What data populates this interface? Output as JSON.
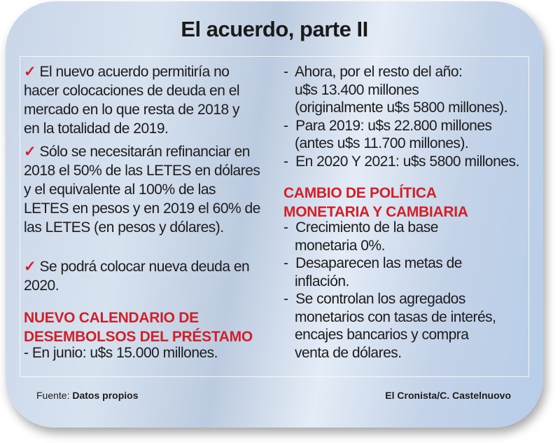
{
  "title": "El acuerdo, parte II",
  "left": {
    "p1": [
      "El nuevo acuerdo permitiría no",
      "hacer colocaciones de deuda en el",
      "mercado en lo que resta de 2018 y",
      "en la totalidad de 2019."
    ],
    "p2": [
      "Sólo se necesitarán refinanciar en",
      "2018 el 50% de las LETES en dólares",
      "y el equivalente al 100% de las",
      "LETES en pesos y en 2019 el 60% de",
      "las LETES (en pesos y dólares)."
    ],
    "p3": [
      "Se podrá colocar nueva deuda en",
      "2020."
    ],
    "heading": [
      "NUEVO CALENDARIO DE",
      "DESEMBOLSOS DEL PRÉSTAMO"
    ],
    "list": [
      "-  En junio: u$s 15.000 millones."
    ]
  },
  "right": {
    "list1": [
      "-  Ahora, por el resto del año:",
      "   u$s 13.400 millones",
      "   (originalmente u$s 5800 millones).",
      "-  Para 2019: u$s 22.800 millones",
      "   (antes u$s 11.700 millones).",
      "-  En 2020 Y 2021: u$s 5800 millones."
    ],
    "heading": [
      "CAMBIO DE POLÍTICA",
      "MONETARIA Y CAMBIARIA"
    ],
    "list2": [
      "-  Crecimiento de la base",
      "   monetaria 0%.",
      "-  Desaparecen las metas de",
      "   inflación.",
      "-  Se controlan los agregados",
      "   monetarios con tasas de interés,",
      "   encajes bancarios y compra",
      "   venta de dólares."
    ]
  },
  "check_symbol": "✓",
  "footer": {
    "source_label": "Fuente: ",
    "source": "Datos propios",
    "credit": "El Cronista/C. Castelnuovo"
  },
  "colors": {
    "accent": "#d0202a"
  }
}
